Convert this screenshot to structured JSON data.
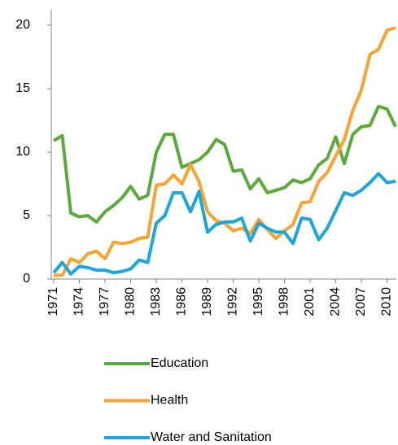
{
  "chart_data": {
    "type": "line",
    "x": [
      1971,
      1972,
      1973,
      1974,
      1975,
      1976,
      1977,
      1978,
      1979,
      1980,
      1981,
      1982,
      1983,
      1984,
      1985,
      1986,
      1987,
      1988,
      1989,
      1990,
      1991,
      1992,
      1993,
      1994,
      1995,
      1996,
      1997,
      1998,
      1999,
      2000,
      2001,
      2002,
      2003,
      2004,
      2005,
      2006,
      2007,
      2008,
      2009,
      2010,
      2011
    ],
    "xlim": [
      1971,
      2011
    ],
    "xticks": [
      1971,
      1974,
      1977,
      1980,
      1983,
      1986,
      1989,
      1992,
      1995,
      1998,
      2001,
      2004,
      2007,
      2010
    ],
    "ylim": [
      0,
      20
    ],
    "yticks": [
      0,
      5,
      10,
      15,
      20
    ],
    "grid": false,
    "legend": "bottom",
    "series": [
      {
        "name": "Education",
        "color": "#5bab3a",
        "values": [
          10.9,
          11.3,
          5.2,
          4.9,
          5.0,
          4.5,
          5.3,
          5.8,
          6.4,
          7.3,
          6.3,
          6.6,
          10.0,
          11.4,
          11.4,
          8.8,
          9.1,
          9.4,
          10.0,
          11.0,
          10.6,
          8.5,
          8.6,
          7.1,
          7.9,
          6.8,
          7.0,
          7.2,
          7.8,
          7.6,
          7.9,
          9.0,
          9.5,
          11.2,
          9.1,
          11.4,
          12.0,
          12.1,
          13.6,
          13.4,
          12.0
        ]
      },
      {
        "name": "Health",
        "color": "#f9a331",
        "values": [
          0.3,
          0.3,
          1.6,
          1.3,
          2.0,
          2.2,
          1.6,
          2.9,
          2.8,
          2.9,
          3.2,
          3.3,
          7.4,
          7.5,
          8.2,
          7.5,
          9.0,
          7.7,
          5.3,
          4.6,
          4.4,
          3.8,
          4.0,
          3.6,
          4.7,
          3.9,
          3.2,
          3.8,
          4.3,
          6.0,
          6.1,
          7.7,
          8.4,
          9.7,
          11.0,
          13.3,
          14.9,
          17.7,
          18.1,
          19.6,
          19.8
        ]
      },
      {
        "name": "Water and Sanitation",
        "color": "#1ba6de",
        "values": [
          0.5,
          1.3,
          0.4,
          1.0,
          0.9,
          0.7,
          0.7,
          0.5,
          0.6,
          0.8,
          1.5,
          1.3,
          4.4,
          5.0,
          6.8,
          6.8,
          5.3,
          6.9,
          3.7,
          4.3,
          4.5,
          4.5,
          4.8,
          3.0,
          4.4,
          4.0,
          3.7,
          3.7,
          2.8,
          4.8,
          4.7,
          3.1,
          4.0,
          5.4,
          6.8,
          6.6,
          7.0,
          7.6,
          8.3,
          7.6,
          7.7
        ]
      }
    ]
  }
}
